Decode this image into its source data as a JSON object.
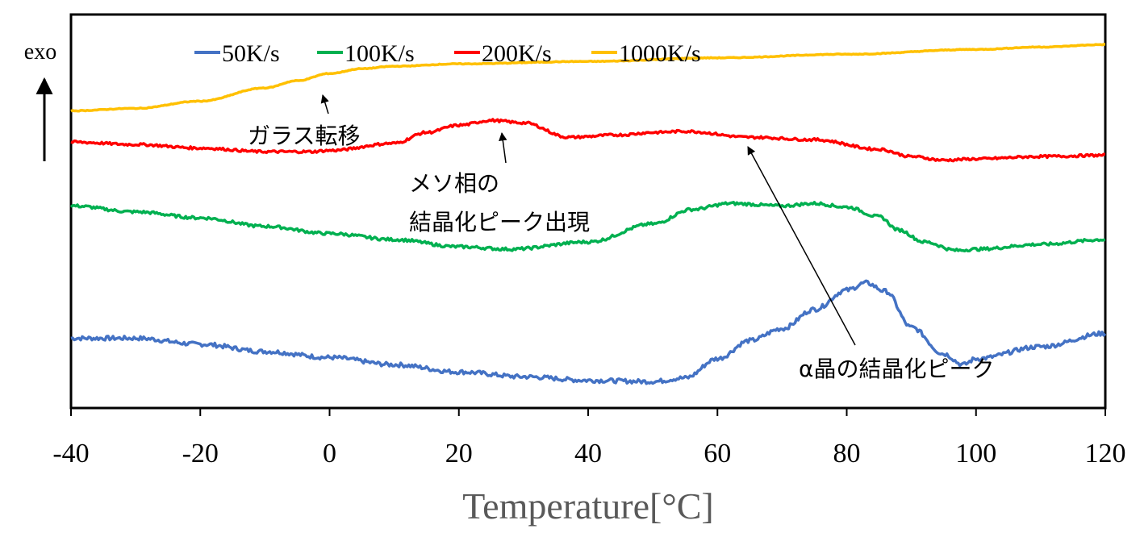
{
  "chart_data": {
    "type": "line",
    "xlabel": "Temperature[°C]",
    "ylabel": "exo",
    "xlim": [
      -40,
      120
    ],
    "xticks": [
      "-40",
      "-20",
      "0",
      "20",
      "40",
      "60",
      "80",
      "100",
      "120"
    ],
    "yticks_shown": false,
    "grid": false,
    "legend_position": "top",
    "colors": {
      "50K/s": "#4472C4",
      "100K/s": "#00B050",
      "200K/s": "#FF0000",
      "1000K/s": "#FFC000",
      "axis": "#000000",
      "xlabel": "#595959"
    },
    "series": [
      {
        "name": "50K/s",
        "x": [
          -40,
          -30,
          -20,
          -10,
          0,
          10,
          20,
          30,
          40,
          50,
          55,
          60,
          65,
          70,
          75,
          80,
          83,
          86,
          90,
          95,
          98,
          100,
          110,
          120
        ],
        "y": [
          0.23,
          0.23,
          0.18,
          0.12,
          0.07,
          0.01,
          -0.05,
          -0.09,
          -0.12,
          -0.13,
          -0.1,
          0.06,
          0.21,
          0.31,
          0.47,
          0.63,
          0.69,
          0.62,
          0.32,
          0.1,
          0.01,
          0.06,
          0.16,
          0.27
        ]
      },
      {
        "name": "100K/s",
        "x": [
          -40,
          -30,
          -20,
          -10,
          0,
          10,
          20,
          28,
          40,
          50,
          56,
          62,
          70,
          75,
          80,
          85,
          88,
          92,
          97,
          100,
          110,
          120
        ],
        "y": [
          1.33,
          1.28,
          1.23,
          1.16,
          1.1,
          1.05,
          0.99,
          0.97,
          1.03,
          1.18,
          1.3,
          1.35,
          1.33,
          1.35,
          1.32,
          1.24,
          1.13,
          1.03,
          0.96,
          0.97,
          1.01,
          1.05
        ]
      },
      {
        "name": "200K/s",
        "x": [
          -40,
          -30,
          -20,
          -10,
          -3,
          0,
          10,
          15,
          20,
          25,
          30,
          37,
          45,
          50,
          55,
          65,
          75,
          85,
          90,
          95,
          100,
          110,
          120
        ],
        "y": [
          1.86,
          1.84,
          1.81,
          1.78,
          1.78,
          1.79,
          1.85,
          1.94,
          2.0,
          2.04,
          2.02,
          1.9,
          1.92,
          1.94,
          1.95,
          1.9,
          1.88,
          1.8,
          1.74,
          1.71,
          1.72,
          1.74,
          1.75
        ]
      },
      {
        "name": "1000K/s",
        "x": [
          -40,
          -30,
          -20,
          -10,
          -5,
          0,
          5,
          10,
          20,
          40,
          60,
          80,
          100,
          110,
          120
        ],
        "y": [
          2.12,
          2.14,
          2.2,
          2.31,
          2.37,
          2.43,
          2.47,
          2.49,
          2.51,
          2.53,
          2.56,
          2.59,
          2.63,
          2.65,
          2.67
        ]
      }
    ],
    "annotations": [
      {
        "text": "ガラス転移",
        "target": "1000K/s",
        "target_x": -1
      },
      {
        "text": "メソ相の",
        "text2": "結晶化ピーク出現",
        "target": "200K/s",
        "target_x": 26
      },
      {
        "text": "α晶の結晶化ピーク",
        "target": "200K/s",
        "target_x": 64
      }
    ]
  }
}
